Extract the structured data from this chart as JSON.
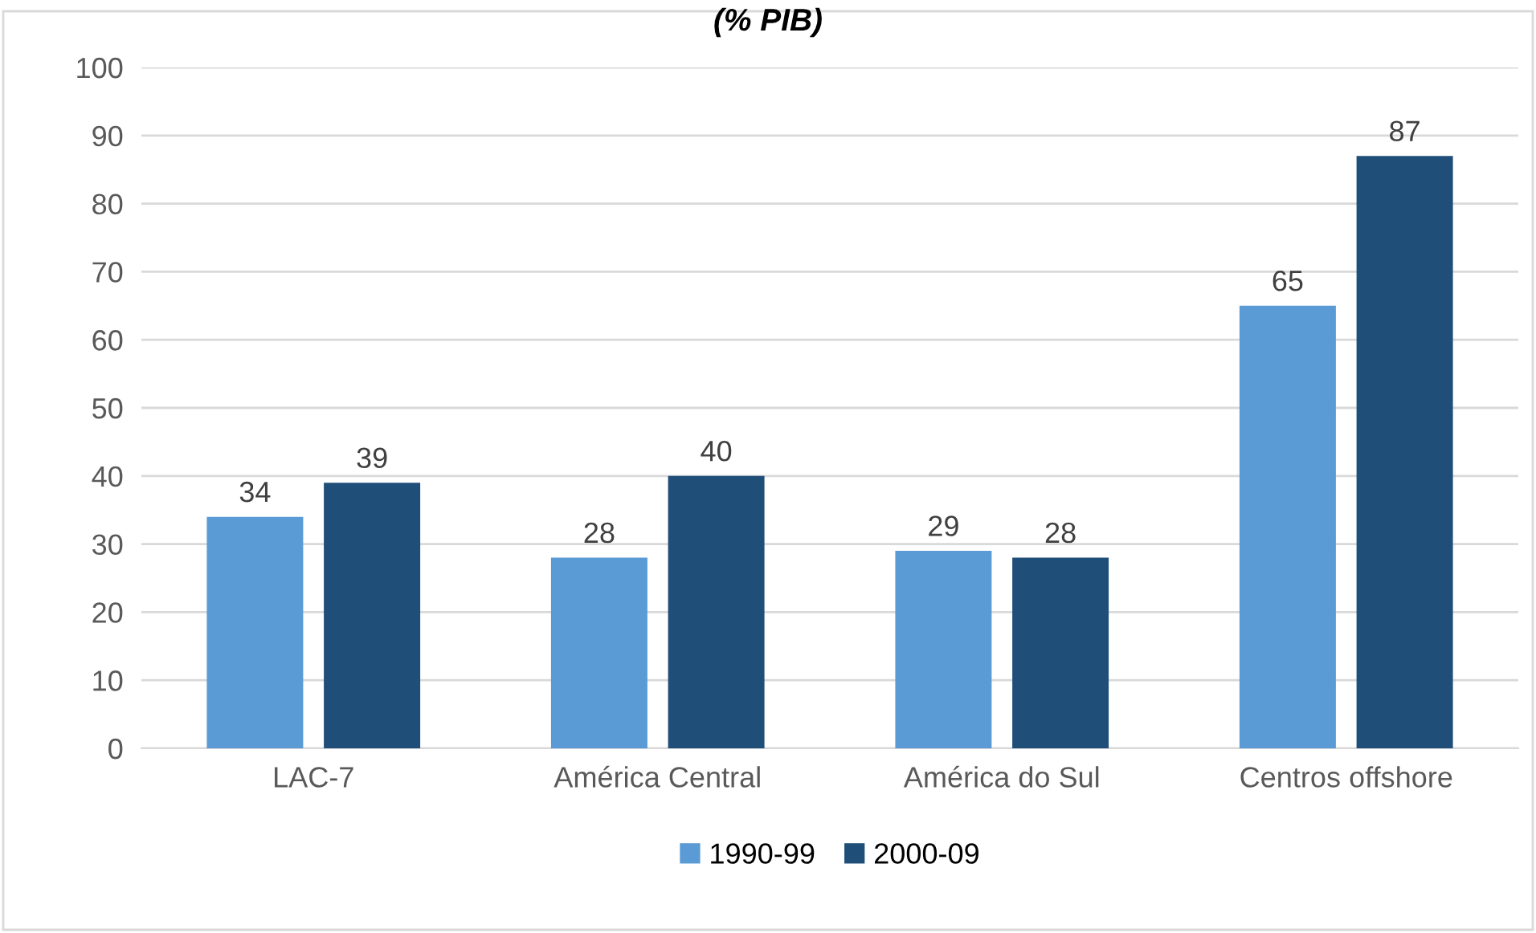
{
  "chart_data": {
    "type": "bar",
    "title": "(% PIB)",
    "categories": [
      "LAC-7",
      "América Central",
      "América do Sul",
      "Centros offshore"
    ],
    "series": [
      {
        "name": "1990-99",
        "color": "#5b9bd5",
        "values": [
          34,
          28,
          29,
          65
        ]
      },
      {
        "name": "2000-09",
        "color": "#1f4e79",
        "values": [
          39,
          40,
          28,
          87
        ]
      }
    ],
    "ylim": [
      0,
      100
    ],
    "yticks": [
      0,
      10,
      20,
      30,
      40,
      50,
      60,
      70,
      80,
      90,
      100
    ],
    "grid": "y",
    "legend": "bottom",
    "data_labels": true
  }
}
